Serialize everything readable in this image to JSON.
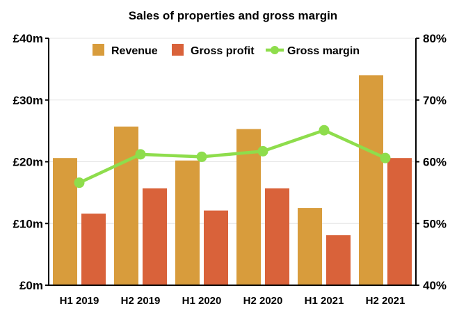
{
  "chart_data": {
    "type": "bar",
    "title": "Sales of properties and gross margin",
    "categories": [
      "H1 2019",
      "H2 2019",
      "H1 2020",
      "H2 2020",
      "H1 2021",
      "H2 2021"
    ],
    "series": [
      {
        "name": "Revenue",
        "kind": "bar",
        "axis": "left",
        "color": "#D89C3C",
        "values": [
          20.6,
          25.7,
          20.2,
          25.3,
          12.5,
          34.0
        ]
      },
      {
        "name": "Gross profit",
        "kind": "bar",
        "axis": "left",
        "color": "#D9623A",
        "values": [
          11.6,
          15.7,
          12.1,
          15.7,
          8.1,
          20.6
        ]
      },
      {
        "name": "Gross margin",
        "kind": "line",
        "axis": "right",
        "color": "#8EDD4C",
        "values": [
          56.6,
          61.2,
          60.8,
          61.7,
          65.1,
          60.6
        ]
      }
    ],
    "y_left": {
      "ylim": [
        0,
        40
      ],
      "ticks": [
        0,
        10,
        20,
        30,
        40
      ],
      "tick_labels": [
        "£0m",
        "£10m",
        "£20m",
        "£30m",
        "£40m"
      ]
    },
    "y_right": {
      "ylim": [
        40,
        80
      ],
      "ticks": [
        40,
        50,
        60,
        70,
        80
      ],
      "tick_labels": [
        "40%",
        "50%",
        "60%",
        "70%",
        "80%"
      ]
    },
    "xlabel": "",
    "ylabel": "",
    "grid": "horizontal",
    "legend_position": "top"
  }
}
